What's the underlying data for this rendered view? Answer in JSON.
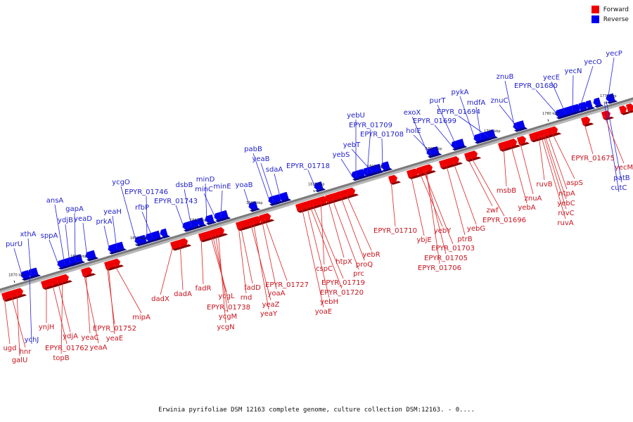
{
  "legend": {
    "items": [
      {
        "label": "Forward",
        "color": "#ee0000"
      },
      {
        "label": "Reverse",
        "color": "#0000ee"
      }
    ]
  },
  "caption": "Erwinia pyrifoliae DSM 12163 complete genome, culture collection DSM:12163. - 0....",
  "colors": {
    "forward": "#ee0000",
    "reverse": "#0000ee"
  },
  "ticks": [
    "1870 kbp",
    "1860 kbp",
    "1850 kbp",
    "1840 kbp",
    "1830 kbp",
    "1820 kbp",
    "1810 kbp",
    "1800 kbp",
    "1790 kbp",
    "1780 kbp",
    "1770 kbp"
  ],
  "reverse_genes": [
    "purU",
    "xthA",
    "ychJ",
    "sppA",
    "ansA",
    "ydjB",
    "gapA",
    "yeaD",
    "prkA",
    "yeaH",
    "ycgO",
    "EPYR_01746",
    "rfbP",
    "EPYR_01743",
    "dsbB",
    "minD",
    "minC",
    "minE",
    "yoaB",
    "pabB",
    "yeaB",
    "sdaA",
    "EPYR_01718",
    "yebU",
    "EPYR_01709",
    "yebT",
    "EPYR_01708",
    "yebS",
    "exoX",
    "holE",
    "EPYR_01699",
    "purT",
    "pykA",
    "EPYR_01694",
    "mdfA",
    "znuB",
    "znuC",
    "EPYR_01680",
    "yecE",
    "yecN",
    "yecO",
    "yecP",
    "patB",
    "cutC"
  ],
  "forward_genes": [
    "ugd",
    "hnr",
    "galU",
    "ynjH",
    "ydjA",
    "EPYR_01762",
    "topB",
    "yeaC",
    "yeaA",
    "EPYR_01752",
    "yeaE",
    "mipA",
    "dadX",
    "dadA",
    "fadR",
    "ycgL",
    "EPYR_01738",
    "ycgM",
    "ycgN",
    "fadD",
    "rnd",
    "yeaZ",
    "yeaY",
    "yoaA",
    "EPYR_01727",
    "yoaE",
    "yebH",
    "EPYR_01720",
    "EPYR_01719",
    "cspC",
    "htpX",
    "prc",
    "proQ",
    "yebR",
    "EPYR_01710",
    "ybjE",
    "yebY",
    "EPYR_01703",
    "EPYR_01705",
    "EPYR_01706",
    "ptrB",
    "yebG",
    "zwf",
    "EPYR_01696",
    "msbB",
    "yebA",
    "znuA",
    "ruvB",
    "aspS",
    "ntpA",
    "yebC",
    "ruvC",
    "ruvA",
    "EPYR_01675",
    "yecM"
  ]
}
